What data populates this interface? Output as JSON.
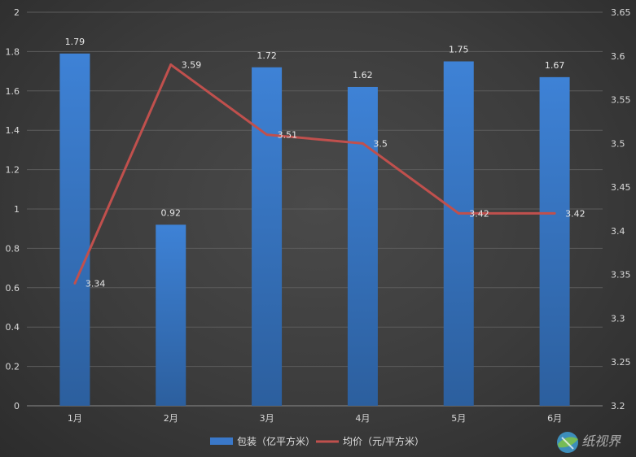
{
  "chart_data": {
    "type": "bar",
    "categories": [
      "1月",
      "2月",
      "3月",
      "4月",
      "5月",
      "6月"
    ],
    "series": [
      {
        "name": "包装（亿平方米）",
        "type": "bar",
        "axis": "left",
        "color": "#3a78c9",
        "values": [
          1.79,
          0.92,
          1.72,
          1.62,
          1.75,
          1.67
        ],
        "labels": [
          "1.79",
          "0.92",
          "1.72",
          "1.62",
          "1.75",
          "1.67"
        ]
      },
      {
        "name": "均价（元/平方米）",
        "type": "line",
        "axis": "right",
        "color": "#c0504d",
        "values": [
          3.34,
          3.59,
          3.51,
          3.5,
          3.42,
          3.42
        ],
        "labels": [
          "3.34",
          "3.59",
          "3.51",
          "3.5",
          "3.42",
          "3.42"
        ]
      }
    ],
    "y_left": {
      "lim": [
        0,
        2
      ],
      "ticks": [
        "0",
        "0.2",
        "0.4",
        "0.6",
        "0.8",
        "1",
        "1.2",
        "1.4",
        "1.6",
        "1.8",
        "2"
      ]
    },
    "y_right": {
      "lim": [
        3.2,
        3.65
      ],
      "ticks": [
        "3.2",
        "3.25",
        "3.3",
        "3.35",
        "3.4",
        "3.45",
        "3.5",
        "3.55",
        "3.6",
        "3.65"
      ]
    },
    "grid": true,
    "legend_position": "bottom-center"
  },
  "watermark": {
    "text": "纸视界",
    "icon": "globe-logo-icon"
  }
}
